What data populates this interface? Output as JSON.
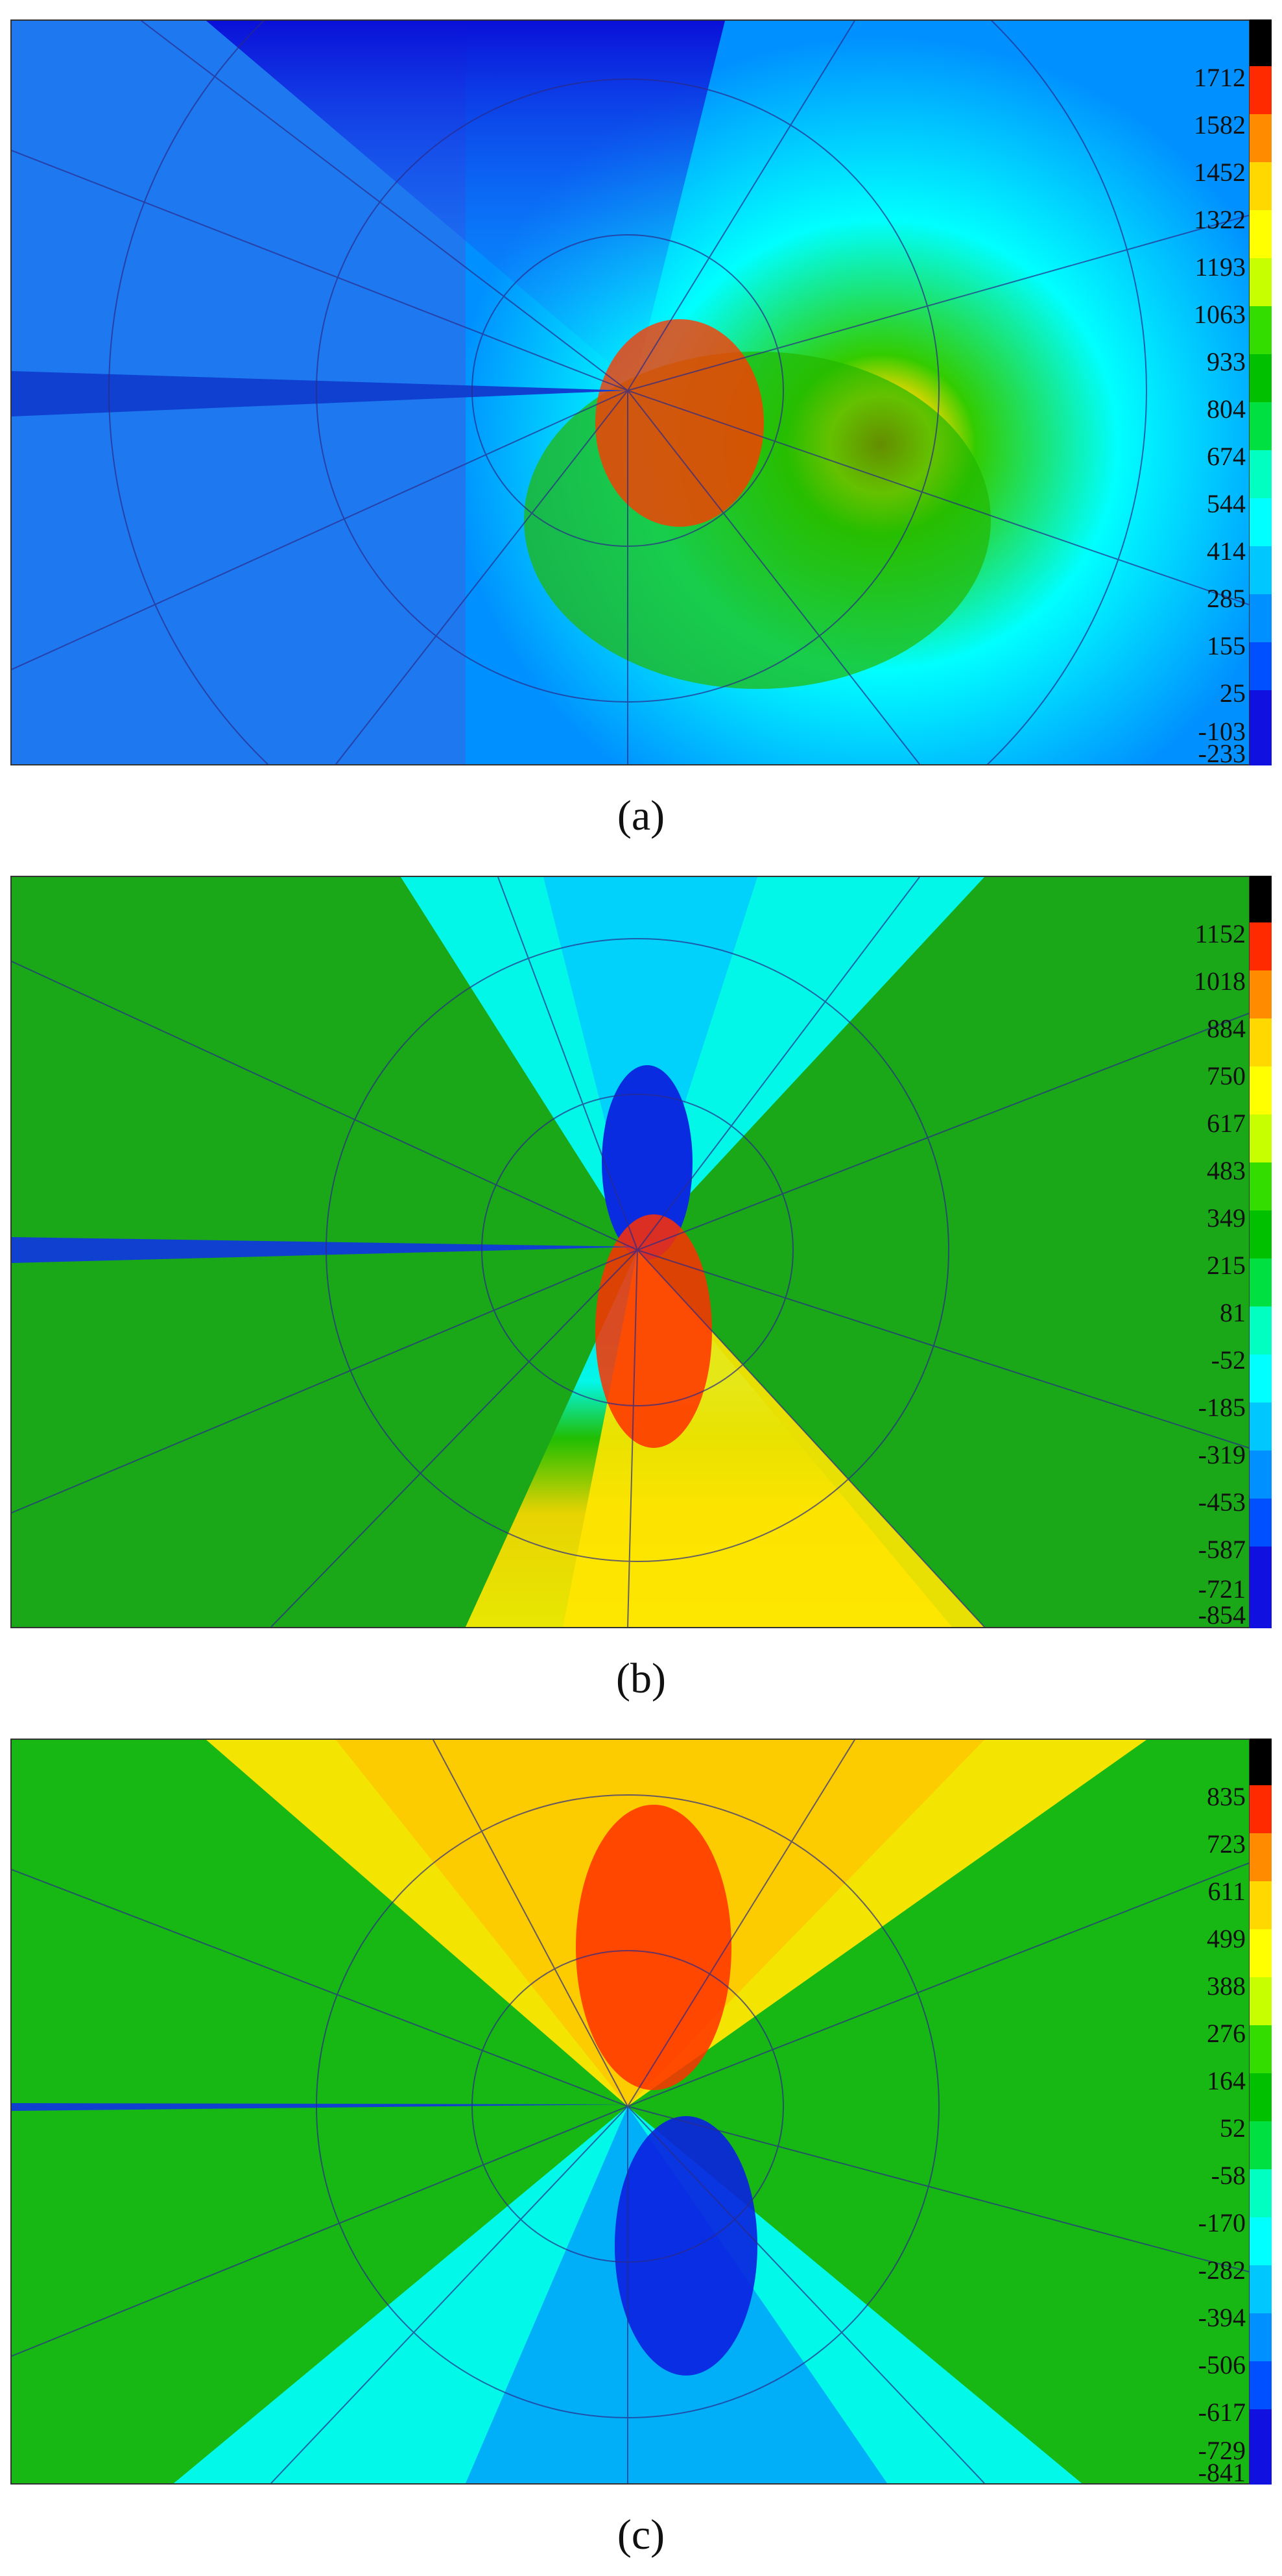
{
  "panels": [
    {
      "caption": "(a)",
      "colorbar_ticks": [
        "1712",
        "1582",
        "1452",
        "1322",
        "1193",
        "1063",
        "933",
        "804",
        "674",
        "544",
        "414",
        "285",
        "155",
        "25",
        "-103",
        "-233"
      ]
    },
    {
      "caption": "(b)",
      "colorbar_ticks": [
        "1152",
        "1018",
        "884",
        "750",
        "617",
        "483",
        "349",
        "215",
        "81",
        "-52",
        "-185",
        "-319",
        "-453",
        "-587",
        "-721",
        "-854"
      ]
    },
    {
      "caption": "(c)",
      "colorbar_ticks": [
        "835",
        "723",
        "611",
        "499",
        "388",
        "276",
        "164",
        "52",
        "-58",
        "-170",
        "-282",
        "-394",
        "-506",
        "-617",
        "-729",
        "-841"
      ]
    }
  ],
  "colors": {
    "max_cap": "#000000",
    "scale": [
      "#ff2a00",
      "#ff8c00",
      "#ffd800",
      "#ffff00",
      "#c8ff00",
      "#33dd00",
      "#00c000",
      "#00e040",
      "#00ffc0",
      "#00ffff",
      "#00c8ff",
      "#0090ff",
      "#0050ff",
      "#1010e0"
    ],
    "mesh_line": "#2a2a8a"
  }
}
